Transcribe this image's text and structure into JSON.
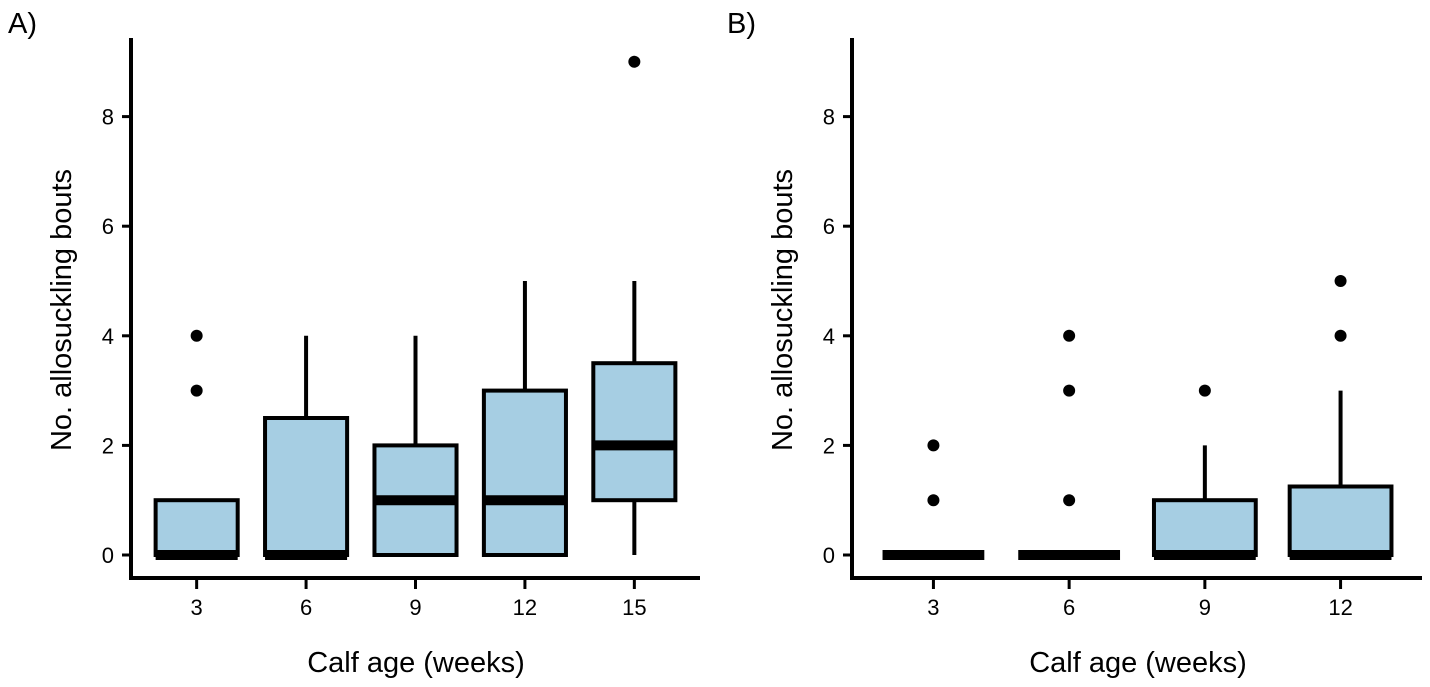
{
  "colors": {
    "box_fill": "#a6cee3",
    "stroke": "#000000",
    "background": "#ffffff"
  },
  "chart_data": [
    {
      "type": "box",
      "panel_label": "A)",
      "xlabel": "Calf age (weeks)",
      "ylabel": "No. allosuckling bouts",
      "ylim": [
        -0.4,
        9.5
      ],
      "yticks": [
        0,
        2,
        4,
        6,
        8
      ],
      "categories": [
        "3",
        "6",
        "9",
        "12",
        "15"
      ],
      "boxes": [
        {
          "category": "3",
          "whisker_low": 0,
          "q1": 0,
          "median": 0,
          "q3": 1,
          "whisker_high": 1,
          "outliers": [
            3,
            4
          ]
        },
        {
          "category": "6",
          "whisker_low": 0,
          "q1": 0,
          "median": 0,
          "q3": 2.5,
          "whisker_high": 4,
          "outliers": []
        },
        {
          "category": "9",
          "whisker_low": 0,
          "q1": 0,
          "median": 1,
          "q3": 2,
          "whisker_high": 4,
          "outliers": []
        },
        {
          "category": "12",
          "whisker_low": 0,
          "q1": 0,
          "median": 1,
          "q3": 3,
          "whisker_high": 5,
          "outliers": []
        },
        {
          "category": "15",
          "whisker_low": 0,
          "q1": 1,
          "median": 2,
          "q3": 3.5,
          "whisker_high": 5,
          "outliers": [
            9
          ]
        }
      ]
    },
    {
      "type": "box",
      "panel_label": "B)",
      "xlabel": "Calf age (weeks)",
      "ylabel": "No. allosuckling bouts",
      "ylim": [
        -0.4,
        9.5
      ],
      "yticks": [
        0,
        2,
        4,
        6,
        8
      ],
      "categories": [
        "3",
        "6",
        "9",
        "12"
      ],
      "boxes": [
        {
          "category": "3",
          "whisker_low": 0,
          "q1": 0,
          "median": 0,
          "q3": 0,
          "whisker_high": 0,
          "outliers": [
            1,
            2
          ]
        },
        {
          "category": "6",
          "whisker_low": 0,
          "q1": 0,
          "median": 0,
          "q3": 0,
          "whisker_high": 0,
          "outliers": [
            1,
            3,
            4
          ]
        },
        {
          "category": "9",
          "whisker_low": 0,
          "q1": 0,
          "median": 0,
          "q3": 1,
          "whisker_high": 2,
          "outliers": [
            3
          ]
        },
        {
          "category": "12",
          "whisker_low": 0,
          "q1": 0,
          "median": 0,
          "q3": 1.25,
          "whisker_high": 3,
          "outliers": [
            4,
            5
          ]
        }
      ]
    }
  ]
}
